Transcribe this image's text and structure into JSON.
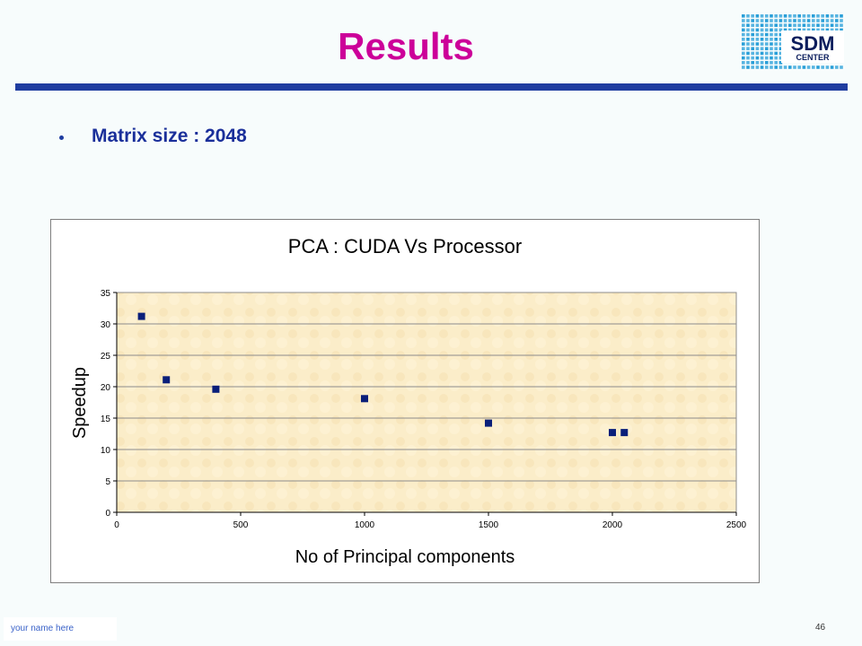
{
  "slide": {
    "title": "Results",
    "bullet": "Matrix size : 2048",
    "footer_name": "your name here",
    "page_number": "46"
  },
  "logo": {
    "line1": "SDM",
    "line2": "CENTER"
  },
  "colors": {
    "title": "#cc0099",
    "accent": "#1f3da0",
    "bullet_text": "#1a2f9a",
    "marker": "#0a1f7a",
    "plot_bg": "#fbedc9",
    "logo_blue": "#2a9fd8"
  },
  "chart_data": {
    "type": "scatter",
    "title": "PCA : CUDA Vs Processor",
    "xlabel": "No of Principal components",
    "ylabel": "Speedup",
    "xlim": [
      0,
      2500
    ],
    "ylim": [
      0,
      35
    ],
    "xticks": [
      0,
      500,
      1000,
      1500,
      2000,
      2500
    ],
    "yticks": [
      0,
      5,
      10,
      15,
      20,
      25,
      30,
      35
    ],
    "grid": "horizontal",
    "legend": "none",
    "marker": "square",
    "series": [
      {
        "x": [
          100,
          200,
          400,
          1000,
          1500,
          2000,
          2048
        ],
        "y": [
          31.2,
          21.1,
          19.6,
          18.1,
          14.2,
          12.7,
          12.7
        ]
      }
    ]
  }
}
